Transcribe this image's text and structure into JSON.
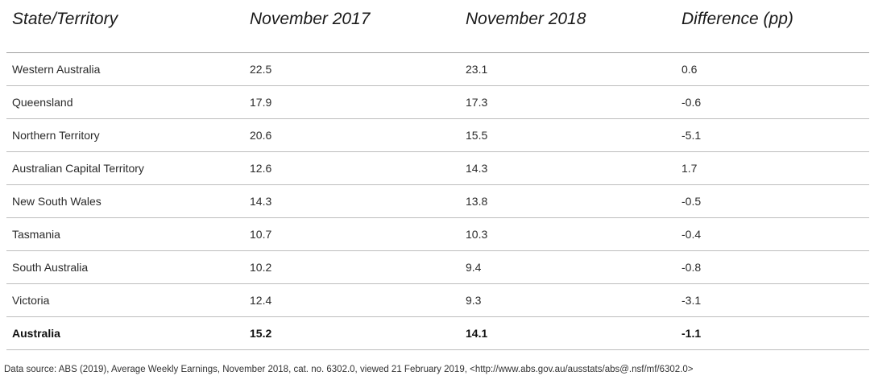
{
  "table": {
    "headers": [
      "State/Territory",
      "November 2017",
      "November 2018",
      "Difference (pp)"
    ],
    "rows": [
      [
        "Western Australia",
        "22.5",
        "23.1",
        "0.6"
      ],
      [
        "Queensland",
        "17.9",
        "17.3",
        "-0.6"
      ],
      [
        "Northern Territory",
        "20.6",
        "15.5",
        "-5.1"
      ],
      [
        "Australian Capital Territory",
        "12.6",
        "14.3",
        "1.7"
      ],
      [
        "New South Wales",
        "14.3",
        "13.8",
        "-0.5"
      ],
      [
        "Tasmania",
        "10.7",
        "10.3",
        "-0.4"
      ],
      [
        "South Australia",
        "10.2",
        "9.4",
        "-0.8"
      ],
      [
        "Victoria",
        "12.4",
        "9.3",
        "-3.1"
      ]
    ],
    "total": [
      "Australia",
      "15.2",
      "14.1",
      "-1.1"
    ]
  },
  "source": "Data source: ABS (2019), Average Weekly Earnings, November 2018, cat. no. 6302.0, viewed 21 February 2019, <http://www.abs.gov.au/ausstats/abs@.nsf/mf/6302.0>"
}
